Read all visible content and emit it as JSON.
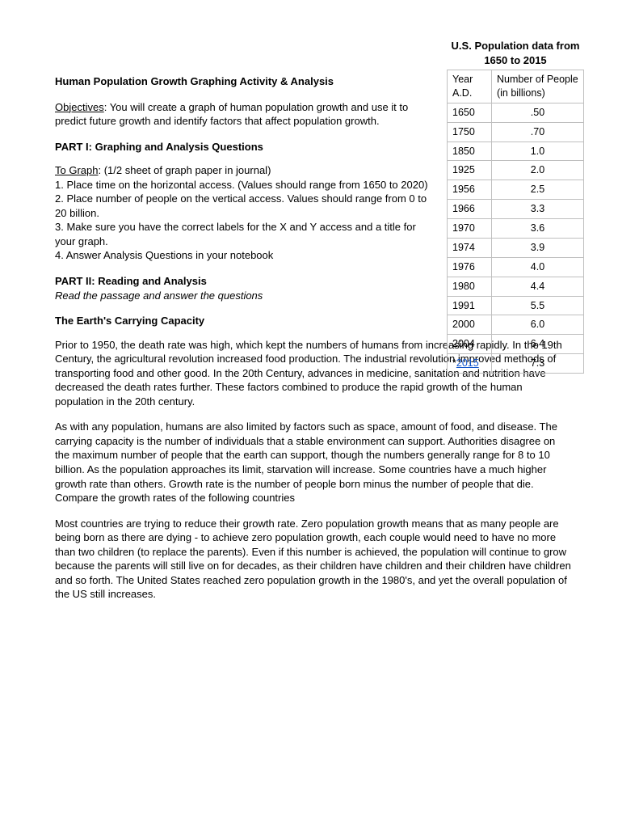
{
  "table": {
    "caption": "U.S. Population data from 1650 to 2015",
    "col1": "Year A.D.",
    "col2": "Number of People (in billions)",
    "rows": [
      {
        "year": "1650",
        "val": ".50",
        "link": false
      },
      {
        "year": "1750",
        "val": ".70",
        "link": false
      },
      {
        "year": "1850",
        "val": "1.0",
        "link": false
      },
      {
        "year": "1925",
        "val": "2.0",
        "link": false
      },
      {
        "year": "1956",
        "val": "2.5",
        "link": false
      },
      {
        "year": "1966",
        "val": "3.3",
        "link": false
      },
      {
        "year": "1970",
        "val": "3.6",
        "link": false
      },
      {
        "year": "1974",
        "val": "3.9",
        "link": false
      },
      {
        "year": "1976",
        "val": "4.0",
        "link": false
      },
      {
        "year": "1980",
        "val": "4.4",
        "link": false
      },
      {
        "year": "1991",
        "val": "5.5",
        "link": false
      },
      {
        "year": "2000",
        "val": "6.0",
        "link": false
      },
      {
        "year": "2004",
        "val": "6.4",
        "link": false
      },
      {
        "year": "2015",
        "prefix": "*",
        "val": "7.3",
        "link": true
      }
    ]
  },
  "doc": {
    "title": "Human Population Growth Graphing Activity & Analysis",
    "objectives_label": "Objectives",
    "objectives_text": ": You will create a graph of human population growth and use it to predict future growth and identify factors that affect population growth.",
    "part1_heading": "PART I: Graphing and Analysis Questions",
    "tograph_label": "To Graph",
    "tograph_text": ": (1/2 sheet of graph paper in journal)",
    "step1": "1. Place time on the horizontal access. (Values should range from 1650 to 2020)",
    "step2": "2. Place number of people on the vertical access. Values should range from 0 to 20 billion.",
    "step3": "3. Make sure you have the correct labels for the X and Y access and a title for your graph.",
    "step4": "4.  Answer Analysis Questions in your notebook",
    "part2_heading": "PART II: Reading and Analysis",
    "part2_sub": "Read the passage and answer the questions",
    "capacity_heading": "The Earth's Carrying Capacity",
    "para1": "Prior to 1950, the death rate was high, which kept the numbers of humans from increasing rapidly. In the 19th Century, the agricultural revolution increased food production. The industrial revolution improved methods of transporting food and other good. In the 20th Century, advances in medicine, sanitation and nutrition have decreased the death rates further. These factors combined to produce the rapid growth of the human population in the 20th century.",
    "para2": "As with any population, humans are also limited by factors such as space, amount of food, and disease. The carrying capacity is the number of individuals that a stable environment can support. Authorities disagree on the maximum number of people that the earth can support, though the numbers generally range for 8 to 10 billion. As the population approaches its limit, starvation will increase. Some countries have a much higher growth rate than others. Growth rate is the number of people born minus the number of people that die. Compare the growth rates of the following countries",
    "para3": "Most countries are trying to reduce their growth rate. Zero population growth means that as many people are being born as there are dying - to achieve zero population growth, each couple would need to have no more than two children (to replace the parents). Even if this number is achieved, the population will continue to grow because the parents will still live on for decades, as their children have children and their children have children and so forth. The United States reached zero population growth in the 1980's, and yet the overall population of the US still increases."
  }
}
